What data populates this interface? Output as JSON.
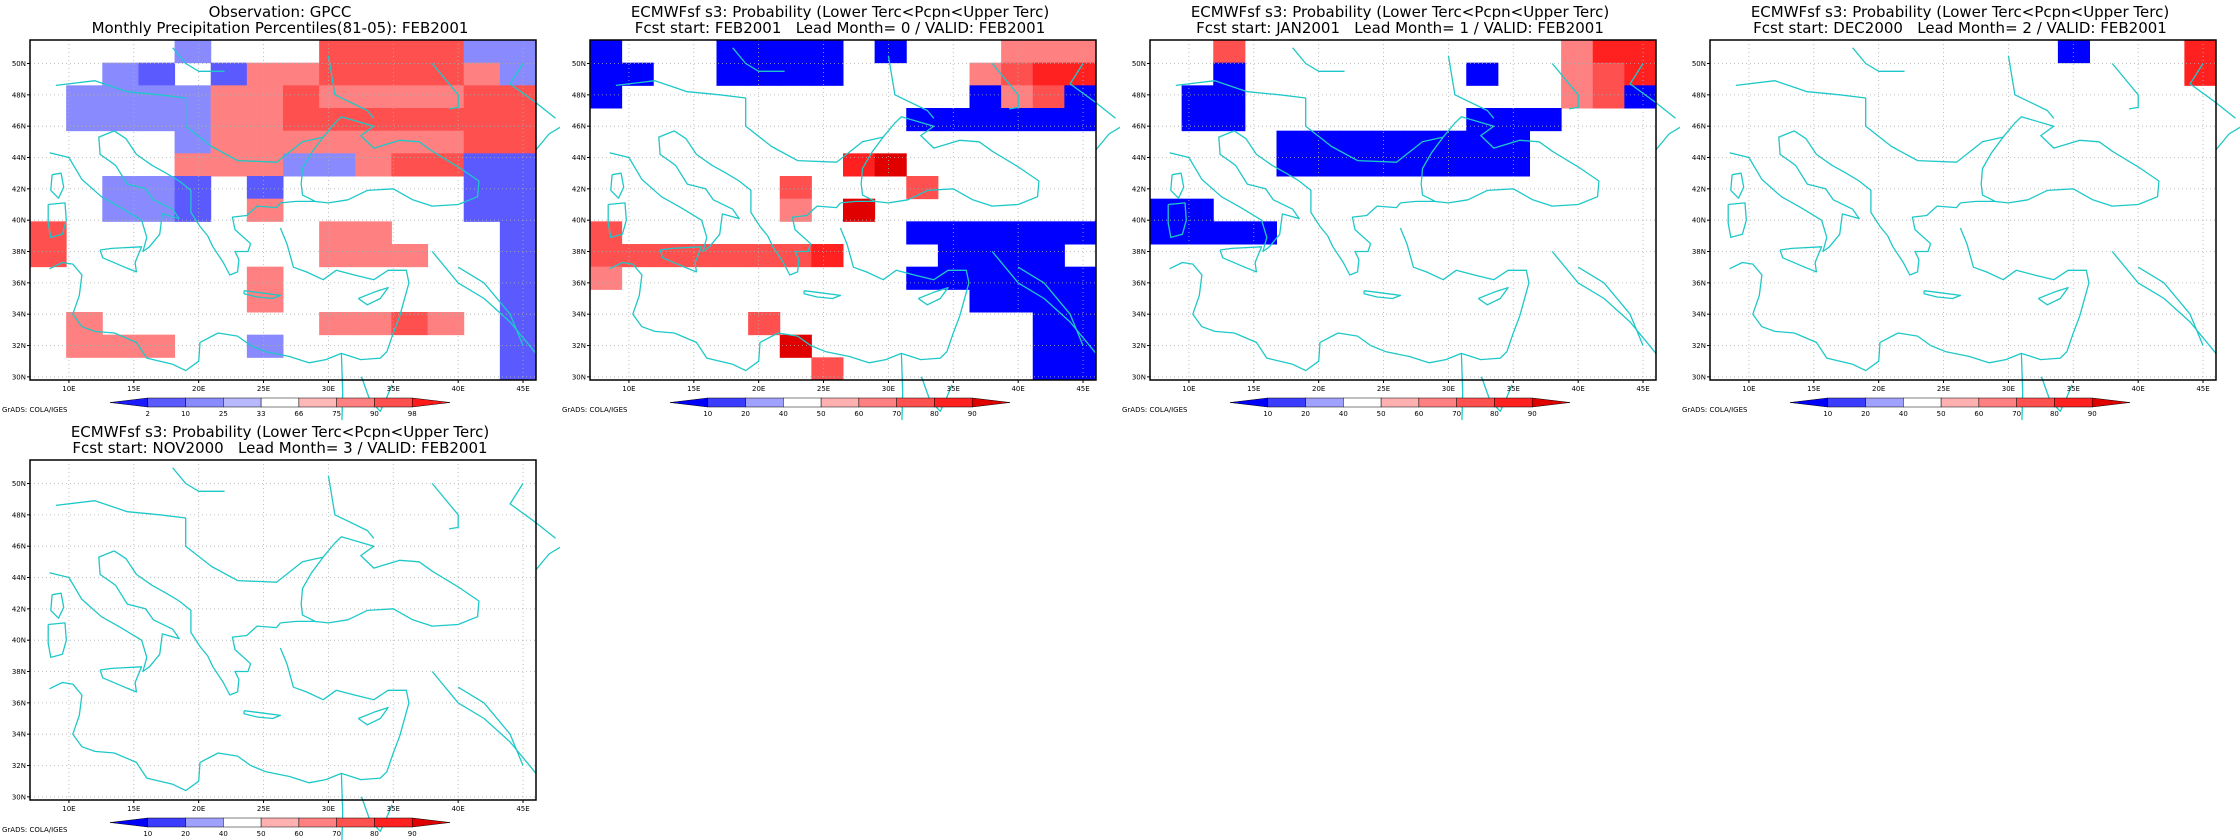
{
  "chart_data": [
    {
      "type": "heatmap",
      "title": "Observation: GPCC",
      "subtitle": "Monthly Precipitation Percentiles(81-05): FEB2001",
      "xticks": [
        "10E",
        "15E",
        "20E",
        "25E",
        "30E",
        "35E",
        "40E",
        "45E"
      ],
      "yticks": [
        "30N",
        "32N",
        "34N",
        "36N",
        "38N",
        "40N",
        "42N",
        "44N",
        "46N",
        "48N",
        "50N"
      ],
      "colorbar_labels": [
        "2",
        "10",
        "25",
        "33",
        "66",
        "75",
        "90",
        "98"
      ],
      "colorbar_colors": [
        "#1a1aff",
        "#5a5aff",
        "#8a8aff",
        "#b8b8ff",
        "#ffffff",
        "#ffb8b8",
        "#ff8080",
        "#ff5050",
        "#ff1a1a"
      ],
      "credit": "GrADS: COLA/IGES",
      "grid": [
        "00002000444422",
        "00210133444432",
        "02222334333344",
        "02222334444444",
        "00002333333344",
        "00003332234411",
        "00221010000011",
        "00221030000011",
        "40000000330001",
        "40000000333001",
        "00000030000001",
        "00000030000001",
        "03000000334301",
        "03330020000001",
        "00000000000001"
      ]
    },
    {
      "type": "heatmap",
      "title": "ECMWFsf s3: Probability (Lower Terc<Pcpn<Upper Terc)",
      "subtitle": "Fcst start: FEB2001   Lead Month= 0 / VALID: FEB2001",
      "xticks": [
        "10E",
        "15E",
        "20E",
        "25E",
        "30E",
        "35E",
        "40E",
        "45E"
      ],
      "yticks": [
        "30N",
        "32N",
        "34N",
        "36N",
        "38N",
        "40N",
        "42N",
        "44N",
        "46N",
        "48N",
        "50N"
      ],
      "colorbar_labels": [
        "10",
        "20",
        "40",
        "50",
        "60",
        "70",
        "80",
        "90"
      ],
      "colorbar_colors": [
        "#0000ff",
        "#3c3cff",
        "#a0a0ff",
        "#ffffff",
        "#ffb0b0",
        "#ff8080",
        "#ff5050",
        "#ff2020",
        "#e00000"
      ],
      "credit": "GrADS: COLA/IGES",
      "grid": [
        "1000111101000222",
        "1100111100002344",
        "1000000000001231",
        "0000000000111111",
        "0000000000000000",
        "0000000045000000",
        "0000003000300000",
        "0000002050000000",
        "3000000000111111",
        "3333333400011110",
        "2000000000111111",
        "0000000000001111",
        "0000030000000011",
        "0000005000000011",
        "0000000300000011"
      ]
    },
    {
      "type": "heatmap",
      "title": "ECMWFsf s3: Probability (Lower Terc<Pcpn<Upper Terc)",
      "subtitle": "Fcst start: JAN2001   Lead Month= 1 / VALID: FEB2001",
      "xticks": [
        "10E",
        "15E",
        "20E",
        "25E",
        "30E",
        "35E",
        "40E",
        "45E"
      ],
      "yticks": [
        "30N",
        "32N",
        "34N",
        "36N",
        "38N",
        "40N",
        "42N",
        "44N",
        "46N",
        "48N",
        "50N"
      ],
      "colorbar_labels": [
        "10",
        "20",
        "40",
        "50",
        "60",
        "70",
        "80",
        "90"
      ],
      "colorbar_colors": [
        "#0000ff",
        "#3c3cff",
        "#a0a0ff",
        "#ffffff",
        "#ffb0b0",
        "#ff8080",
        "#ff5050",
        "#ff2020",
        "#e00000"
      ],
      "credit": "GrADS: COLA/IGES",
      "grid": [
        "0030000000000244",
        "0010000000100234",
        "0110000000000231",
        "0110000000111000",
        "0000111111110000",
        "0000111111110000",
        "0000000000000000",
        "1100000000000000",
        "1111000000000000",
        "0000000000000000",
        "0000000000000000",
        "0000000000000000",
        "0000000000000000",
        "0000000000000000",
        "0000000000000000"
      ]
    },
    {
      "type": "heatmap",
      "title": "ECMWFsf s3: Probability (Lower Terc<Pcpn<Upper Terc)",
      "subtitle": "Fcst start: DEC2000   Lead Month= 2 / VALID: FEB2001",
      "xticks": [
        "10E",
        "15E",
        "20E",
        "25E",
        "30E",
        "35E",
        "40E",
        "45E"
      ],
      "yticks": [
        "30N",
        "32N",
        "34N",
        "36N",
        "38N",
        "40N",
        "42N",
        "44N",
        "46N",
        "48N",
        "50N"
      ],
      "colorbar_labels": [
        "10",
        "20",
        "40",
        "50",
        "60",
        "70",
        "80",
        "90"
      ],
      "colorbar_colors": [
        "#0000ff",
        "#3c3cff",
        "#a0a0ff",
        "#ffffff",
        "#ffb0b0",
        "#ff8080",
        "#ff5050",
        "#ff2020",
        "#e00000"
      ],
      "credit": "GrADS: COLA/IGES",
      "grid": [
        "0000000000010004",
        "0000000000000004",
        "0000000000000000",
        "0000000000000000",
        "0000000000000000",
        "0000000000000000",
        "0000000000000000",
        "0000000000000000",
        "0000000000000000",
        "0000000000000000",
        "0000000000000000",
        "0000000000000000",
        "0000000000000000",
        "0000000000000000",
        "0000000000000000"
      ]
    },
    {
      "type": "heatmap",
      "title": "ECMWFsf s3: Probability (Lower Terc<Pcpn<Upper Terc)",
      "subtitle": "Fcst start: NOV2000   Lead Month= 3 / VALID: FEB2001",
      "xticks": [
        "10E",
        "15E",
        "20E",
        "25E",
        "30E",
        "35E",
        "40E",
        "45E"
      ],
      "yticks": [
        "30N",
        "32N",
        "34N",
        "36N",
        "38N",
        "40N",
        "42N",
        "44N",
        "46N",
        "48N",
        "50N"
      ],
      "colorbar_labels": [
        "10",
        "20",
        "40",
        "50",
        "60",
        "70",
        "80",
        "90"
      ],
      "colorbar_colors": [
        "#0000ff",
        "#3c3cff",
        "#a0a0ff",
        "#ffffff",
        "#ffb0b0",
        "#ff8080",
        "#ff5050",
        "#ff2020",
        "#e00000"
      ],
      "credit": "GrADS: COLA/IGES",
      "grid": [
        "0000000000000000",
        "0000000000000000",
        "0000000000000000",
        "0000000000000000",
        "0000000000000000",
        "0000000000000000",
        "0000000000000000",
        "0000000000000000",
        "0000000000000000",
        "0000000000000000",
        "0000000000000000",
        "0000000000000000",
        "0000000000000000",
        "0000000000000000",
        "0000000000000000"
      ]
    }
  ]
}
